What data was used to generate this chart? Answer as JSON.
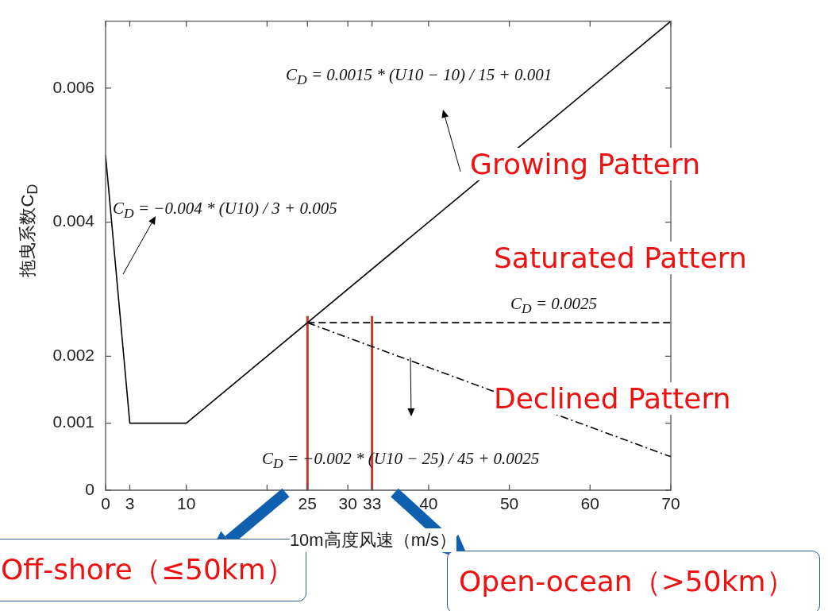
{
  "chart_data": {
    "type": "line",
    "xlabel": "10m高度风速（m/s）",
    "ylabel": "拖曳系数C$_{D}$",
    "xlim": [
      0,
      70
    ],
    "ylim": [
      0,
      0.007
    ],
    "xticks": [
      0,
      3,
      10,
      {
        "value": 20,
        "label": null
      },
      25,
      30,
      33,
      40,
      50,
      60,
      70
    ],
    "yticks": [
      0,
      0.001,
      0.002,
      0.004,
      0.006
    ],
    "grid": false,
    "legend": false,
    "marker": "none",
    "series": [
      {
        "x": [
          0,
          3,
          10,
          70
        ],
        "values": [
          0.005,
          0.001,
          0.001,
          0.007
        ],
        "color": "#000000",
        "line_style": "solid"
      },
      {
        "x": [
          25,
          70
        ],
        "values": [
          0.0025,
          0.0025
        ],
        "color": "#000000",
        "line_style": "dashed"
      },
      {
        "x": [
          25,
          70
        ],
        "values": [
          0.0025,
          0.0005
        ],
        "color": "#000000",
        "line_style": "dotted"
      },
      {
        "x": [
          25,
          25
        ],
        "values": [
          0,
          0.0026
        ],
        "color": "#c0392b",
        "line_style": "solid"
      },
      {
        "x": [
          33,
          33
        ],
        "values": [
          0,
          0.0026
        ],
        "color": "#c0392b",
        "line_style": "solid"
      }
    ],
    "annotations": [
      "C$_{D}$ = 0.0015 * (U10 − 10) / 15 + 0.001",
      "C$_{D}$ = −0.004 * (U10) / 3 + 0.005",
      "C$_{D}$ = 0.0025",
      "C$_{D}$ = −0.002 * (U10 − 25) / 45 + 0.0025",
      "Growing Pattern",
      "Saturated Pattern",
      "Declined Pattern",
      "Off-shore（≤50km）",
      "Open-ocean（>50km）"
    ]
  }
}
